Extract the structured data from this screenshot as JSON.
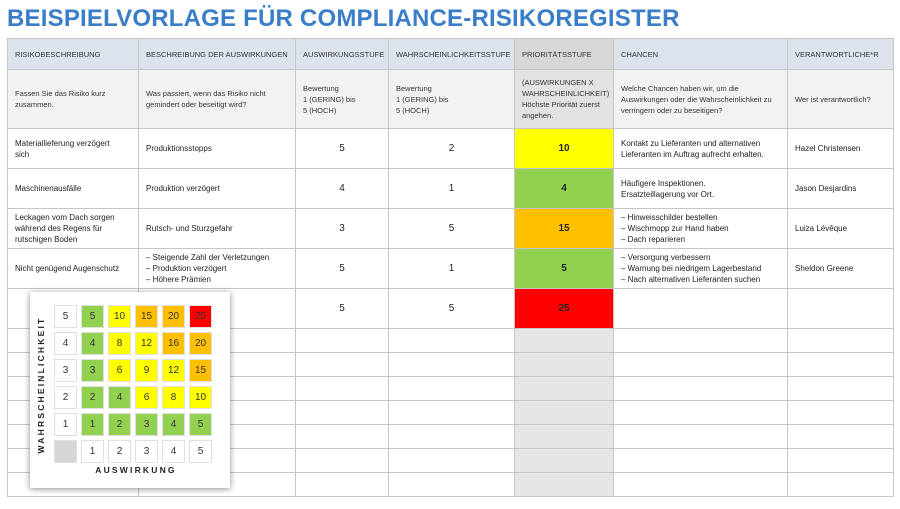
{
  "title": "BEISPIELVORLAGE FÜR COMPLIANCE-RISIKOREGISTER",
  "headers": [
    "RISIKOBESCHREIBUNG",
    "BESCHREIBUNG DER AUSWIRKUNGEN",
    "AUSWIRKUNGSSTUFE",
    "WAHRSCHEINLICHKEITSSTUFE",
    "PRIORITÄTSSTUFE",
    "CHANCEN",
    "VERANTWORTLICHE*R"
  ],
  "instructions": [
    [
      "Fassen Sie das Risiko kurz",
      "zusammen."
    ],
    [
      "Was passiert, wenn das Risiko nicht",
      "gemindert oder beseitigt wird?"
    ],
    [
      "Bewertung",
      "1 (GERING) bis",
      "5 (HOCH)"
    ],
    [
      "Bewertung",
      "1 (GERING) bis",
      "5 (HOCH)"
    ],
    [
      "(AUSWIRKUNGEN X",
      "WAHRSCHEINLICHKEIT)",
      "Höchste Priorität zuerst",
      "angehen."
    ],
    [
      "Welche Chancen haben wir, um die",
      "Auswirkungen oder die Wahrscheinlichkeit zu",
      "verringern oder zu beseitigen?"
    ],
    [
      "Wer ist verantwortlich?"
    ]
  ],
  "rows": [
    {
      "risk": [
        "Materiallieferung verzögert",
        "sich"
      ],
      "impact": [
        "Produktionsstopps"
      ],
      "impact_level": "5",
      "probability_level": "2",
      "priority": "10",
      "priority_color": "#ffff00",
      "chances": [
        "Kontakt zu Lieferanten und alternativen",
        "Lieferanten im Auftrag aufrecht erhalten."
      ],
      "owner": "Hazel Christensen"
    },
    {
      "risk": [
        "Maschinenausfälle"
      ],
      "impact": [
        "Produktion verzögert"
      ],
      "impact_level": "4",
      "probability_level": "1",
      "priority": "4",
      "priority_color": "#92d050",
      "chances": [
        "Häufigere Inspektionen.",
        "Ersatzteillagerung vor Ort."
      ],
      "owner": "Jason Desjardins"
    },
    {
      "risk": [
        "Leckagen vom Dach sorgen",
        "während des Regens für",
        "rutschigen Boden"
      ],
      "impact": [
        "Rutsch- und Sturzgefahr"
      ],
      "impact_level": "3",
      "probability_level": "5",
      "priority": "15",
      "priority_color": "#ffc000",
      "chances": [
        "– Hinweisschilder bestellen",
        "– Wischmopp zur Hand haben",
        "– Dach reparieren"
      ],
      "owner": "Luiza Lévêque"
    },
    {
      "risk": [
        "Nicht genügend Augenschutz"
      ],
      "impact": [
        "– Steigende Zahl der Verletzungen",
        "– Produktion verzögert",
        "– Höhere Prämien"
      ],
      "impact_level": "5",
      "probability_level": "1",
      "priority": "5",
      "priority_color": "#92d050",
      "chances": [
        "– Versorgung verbessern",
        "– Warnung bei niedrigem Lagerbestand",
        "– Nach alternativen Lieferanten suchen"
      ],
      "owner": "Sheldon Greene"
    },
    {
      "risk": [],
      "impact": [],
      "impact_level": "5",
      "probability_level": "5",
      "priority": "25",
      "priority_color": "#ff0000",
      "chances": [],
      "owner": ""
    }
  ],
  "empty_row_count": 7,
  "matrix": {
    "y_label": "WAHRSCHEINLICHKEIT",
    "x_label": "AUSWIRKUNG",
    "y_values": [
      "5",
      "4",
      "3",
      "2",
      "1"
    ],
    "x_values": [
      "1",
      "2",
      "3",
      "4",
      "5"
    ],
    "cells": [
      [
        {
          "v": "5",
          "c": "#92d050"
        },
        {
          "v": "10",
          "c": "#ffff00"
        },
        {
          "v": "15",
          "c": "#ffc000"
        },
        {
          "v": "20",
          "c": "#ffc000"
        },
        {
          "v": "25",
          "c": "#ff0000"
        }
      ],
      [
        {
          "v": "4",
          "c": "#92d050"
        },
        {
          "v": "8",
          "c": "#ffff00"
        },
        {
          "v": "12",
          "c": "#ffff00"
        },
        {
          "v": "16",
          "c": "#ffc000"
        },
        {
          "v": "20",
          "c": "#ffc000"
        }
      ],
      [
        {
          "v": "3",
          "c": "#92d050"
        },
        {
          "v": "6",
          "c": "#ffff00"
        },
        {
          "v": "9",
          "c": "#ffff00"
        },
        {
          "v": "12",
          "c": "#ffff00"
        },
        {
          "v": "15",
          "c": "#ffc000"
        }
      ],
      [
        {
          "v": "2",
          "c": "#92d050"
        },
        {
          "v": "4",
          "c": "#92d050"
        },
        {
          "v": "6",
          "c": "#ffff00"
        },
        {
          "v": "8",
          "c": "#ffff00"
        },
        {
          "v": "10",
          "c": "#ffff00"
        }
      ],
      [
        {
          "v": "1",
          "c": "#92d050"
        },
        {
          "v": "2",
          "c": "#92d050"
        },
        {
          "v": "3",
          "c": "#92d050"
        },
        {
          "v": "4",
          "c": "#92d050"
        },
        {
          "v": "5",
          "c": "#92d050"
        }
      ]
    ]
  }
}
